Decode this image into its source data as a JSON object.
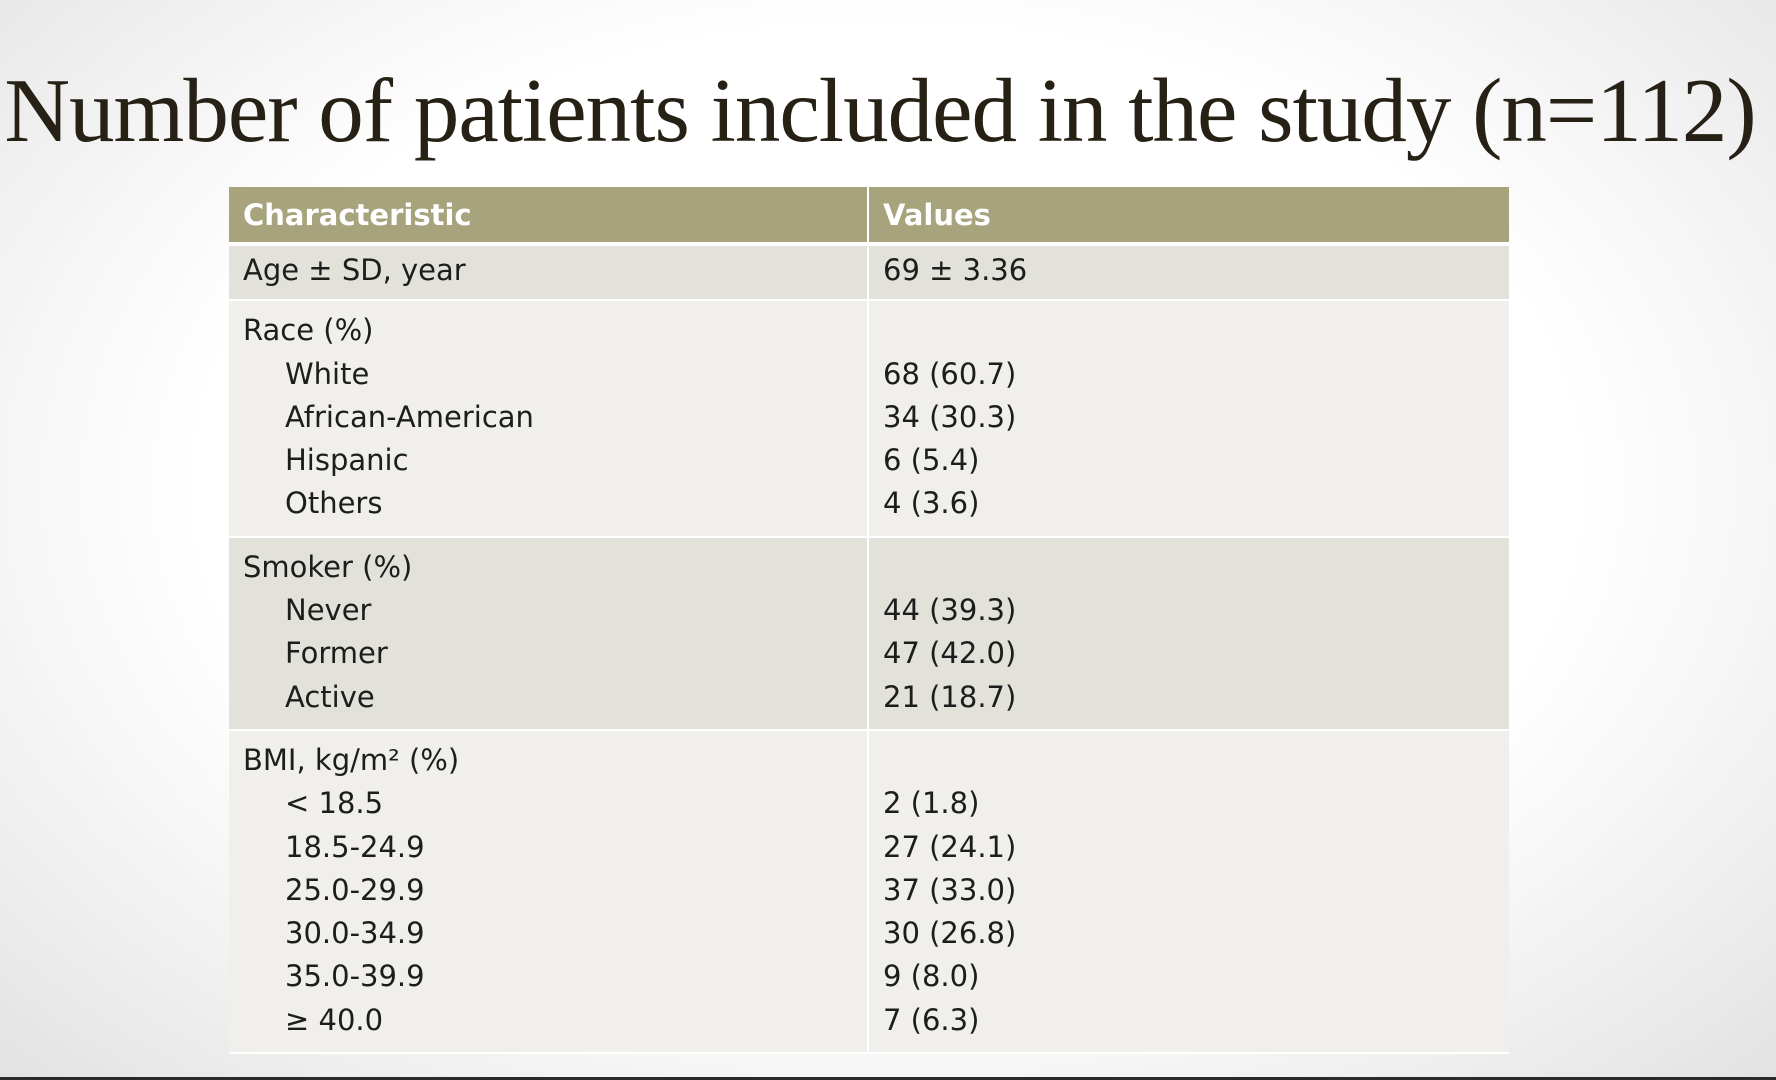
{
  "title": "Number of patients included in the study (n=112)",
  "table": {
    "headers": [
      "Characteristic",
      "Values"
    ],
    "age": {
      "label": "Age ± SD, year",
      "value": "69 ± 3.36"
    },
    "race": {
      "label": "Race (%)",
      "rows": [
        {
          "label": "White",
          "value": "68 (60.7)"
        },
        {
          "label": "African-American",
          "value": "34 (30.3)"
        },
        {
          "label": "Hispanic",
          "value": "6 (5.4)"
        },
        {
          "label": "Others",
          "value": "4 (3.6)"
        }
      ]
    },
    "smoker": {
      "label": "Smoker (%)",
      "rows": [
        {
          "label": "Never",
          "value": "44 (39.3)"
        },
        {
          "label": "Former",
          "value": "47 (42.0)"
        },
        {
          "label": "Active",
          "value": "21 (18.7)"
        }
      ]
    },
    "bmi": {
      "label": "BMI, kg/m² (%)",
      "rows": [
        {
          "label": "< 18.5",
          "value": "2 (1.8)"
        },
        {
          "label": "18.5-24.9",
          "value": "27 (24.1)"
        },
        {
          "label": "25.0-29.9",
          "value": "37 (33.0)"
        },
        {
          "label": "30.0-34.9",
          "value": "30 (26.8)"
        },
        {
          "label": "35.0-39.9",
          "value": "9 (8.0)"
        },
        {
          "label": "≥ 40.0",
          "value": "7 (6.3)"
        }
      ]
    }
  },
  "colors": {
    "header_bg": "#a7a37d",
    "band_dark": "#e2e1da",
    "band_light": "#f0efeb",
    "title_text": "#262015"
  }
}
